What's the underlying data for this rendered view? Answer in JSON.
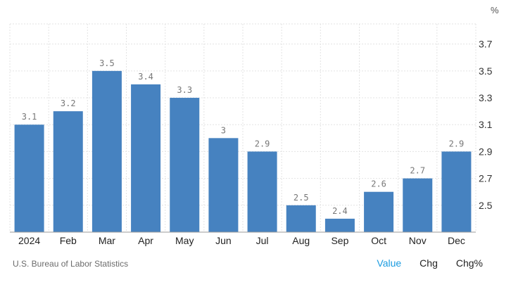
{
  "chart_data": {
    "type": "bar",
    "categories": [
      "2024",
      "Feb",
      "Mar",
      "Apr",
      "May",
      "Jun",
      "Jul",
      "Aug",
      "Sep",
      "Oct",
      "Nov",
      "Dec"
    ],
    "values": [
      3.1,
      3.2,
      3.5,
      3.4,
      3.3,
      3,
      2.9,
      2.5,
      2.4,
      2.6,
      2.7,
      2.9
    ],
    "value_labels": [
      "3.1",
      "3.2",
      "3.5",
      "3.4",
      "3.3",
      "3",
      "2.9",
      "2.5",
      "2.4",
      "2.6",
      "2.7",
      "2.9"
    ],
    "unit": "%",
    "y_ticks": [
      2.5,
      2.7,
      2.9,
      3.1,
      3.3,
      3.5,
      3.7
    ],
    "ylim": [
      2.3,
      3.85
    ],
    "grid": true,
    "bar_color": "#4682c0",
    "grid_color": "#e3e3e3",
    "label_color": "#777777"
  },
  "footer": {
    "source": "U.S. Bureau of Labor Statistics",
    "tabs": [
      "Value",
      "Chg",
      "Chg%"
    ],
    "active_tab": "Value"
  },
  "colors": {
    "active_tab": "#1a9be0"
  }
}
